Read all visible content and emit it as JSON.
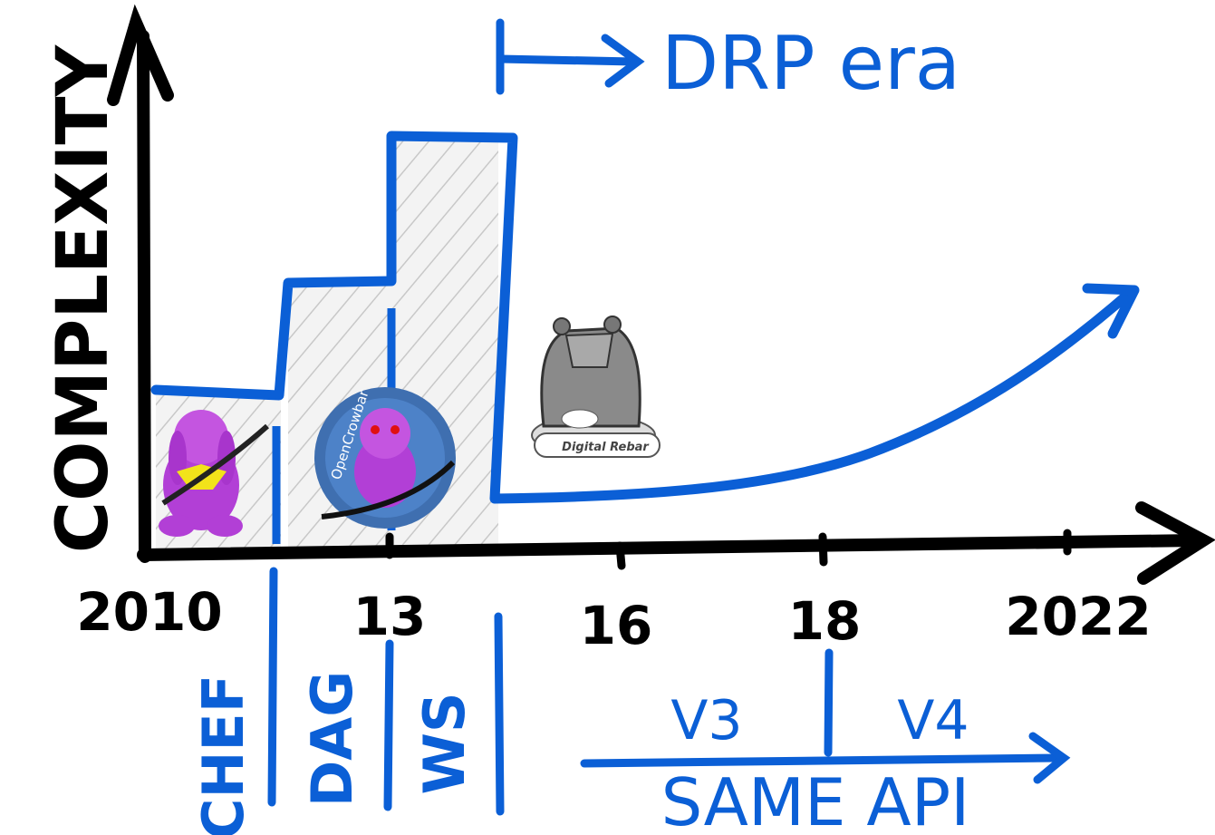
{
  "header": {
    "label": "DRP era"
  },
  "y_axis": {
    "label": "COMPLEXITY"
  },
  "x_axis": {
    "ticks": [
      "2010",
      "13",
      "16",
      "18",
      "2022"
    ]
  },
  "eras": [
    "CHEF",
    "DAG",
    "WS"
  ],
  "versions": [
    "V3",
    "V4"
  ],
  "api_label": "SAME API",
  "logos": [
    "OpenCrowbar",
    "Digital Rebar"
  ]
}
